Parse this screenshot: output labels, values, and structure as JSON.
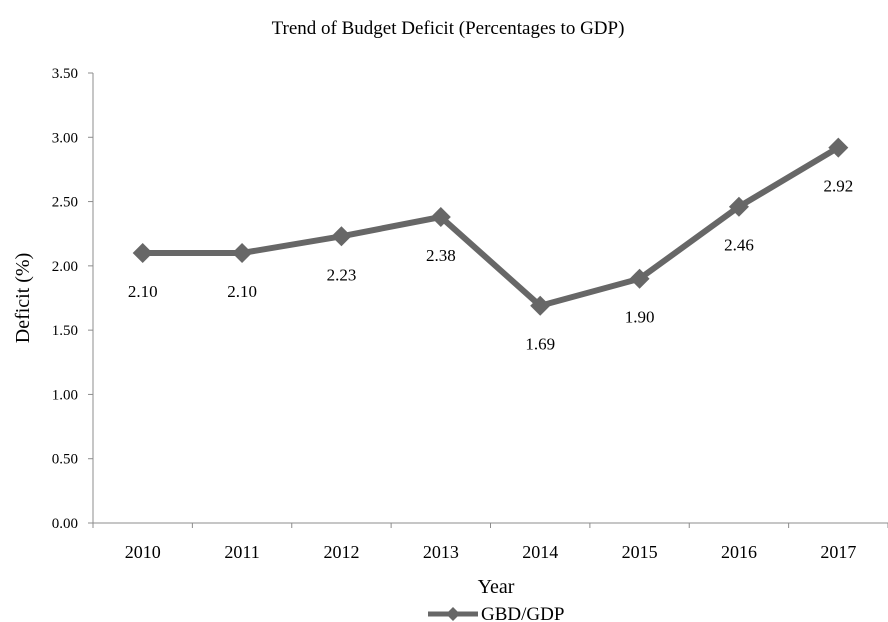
{
  "chart_data": {
    "type": "line",
    "title": "Trend of Budget Deficit (Percentages to GDP)",
    "xlabel": "Year",
    "ylabel": "Deficit (%)",
    "categories": [
      "2010",
      "2011",
      "2012",
      "2013",
      "2014",
      "2015",
      "2016",
      "2017"
    ],
    "ylim": [
      0,
      3.5
    ],
    "yticks": [
      "0.00",
      "0.50",
      "1.00",
      "1.50",
      "2.00",
      "2.50",
      "3.00",
      "3.50"
    ],
    "series": [
      {
        "name": "GBD/GDP",
        "values": [
          2.1,
          2.1,
          2.23,
          2.38,
          1.69,
          1.9,
          2.46,
          2.92
        ],
        "labels": [
          "2.10",
          "2.10",
          "2.23",
          "2.38",
          "1.69",
          "1.90",
          "2.46",
          "2.92"
        ],
        "color": "#676767",
        "marker": "diamond"
      }
    ],
    "grid": false,
    "legend": "bottom-center"
  }
}
